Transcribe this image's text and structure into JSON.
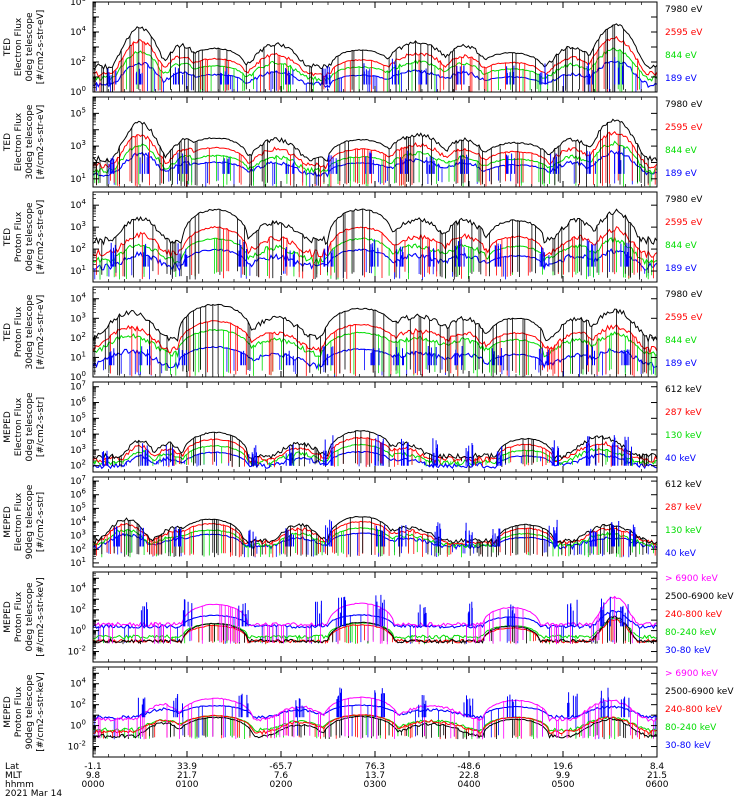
{
  "chart_data": [
    {
      "type": "line",
      "ylabel_lines": [
        "TED",
        "Electron Flux",
        "0deg telescope",
        "[#/cm2-s-str-eV]"
      ],
      "y_log_exponents": [
        0,
        2,
        4,
        6
      ],
      "ylim_exp": [
        0,
        6
      ],
      "x_hours": [
        0,
        6
      ],
      "series": [
        {
          "name": "7980 eV",
          "color": "#000000"
        },
        {
          "name": "2595 eV",
          "color": "#ff0000"
        },
        {
          "name": "844 eV",
          "color": "#00dd00"
        },
        {
          "name": "189 eV",
          "color": "#0000ff"
        }
      ],
      "overlays": [
        [
          0.2,
          1.1
        ],
        [
          0.5,
          1.3
        ],
        [
          0.9,
          1.2
        ],
        [
          1.4,
          1.0
        ],
        [
          2.1,
          1.0
        ],
        [
          2.5,
          1.2
        ],
        [
          2.9,
          1.4
        ],
        [
          3.2,
          1.6
        ],
        [
          3.5,
          1.0
        ],
        [
          3.9,
          1.4
        ],
        [
          4.45,
          1.3
        ],
        [
          4.8,
          1.3
        ],
        [
          5.3,
          1.4
        ],
        [
          5.6,
          1.8
        ]
      ],
      "arches": [
        [
          1.3,
          0.32,
          1.2
        ],
        [
          2.85,
          0.32,
          1.1
        ],
        [
          4.45,
          0.32,
          0.9
        ]
      ],
      "lobes": [
        [
          0.5,
          0.3,
          2.6
        ],
        [
          0.95,
          0.25,
          1.4
        ],
        [
          1.95,
          0.35,
          1.5
        ],
        [
          3.45,
          0.45,
          1.6
        ],
        [
          3.95,
          0.3,
          1.4
        ],
        [
          5.1,
          0.3,
          1.3
        ],
        [
          5.55,
          0.35,
          2.8
        ]
      ],
      "bg": [
        1.7,
        1.2,
        0.9,
        0.5
      ],
      "noise_lo": -0.2,
      "seed": 11
    },
    {
      "type": "line",
      "ylabel_lines": [
        "TED",
        "Electron Flux",
        "30deg telescope",
        "[#/cm2-s-str-eV]"
      ],
      "y_log_exponents": [
        1,
        3,
        5
      ],
      "ylim_exp": [
        0.5,
        6
      ],
      "x_hours": [
        0,
        6
      ],
      "series": [
        {
          "name": "7980 eV",
          "color": "#000000"
        },
        {
          "name": "2595 eV",
          "color": "#ff0000"
        },
        {
          "name": "844 eV",
          "color": "#00dd00"
        },
        {
          "name": "189 eV",
          "color": "#0000ff"
        }
      ],
      "overlays": [
        [
          0.2,
          1.0
        ],
        [
          0.55,
          1.2
        ],
        [
          0.95,
          1.2
        ],
        [
          1.4,
          1.0
        ],
        [
          2.1,
          1.0
        ],
        [
          2.55,
          1.2
        ],
        [
          2.95,
          1.3
        ],
        [
          3.3,
          1.4
        ],
        [
          3.6,
          1.0
        ],
        [
          3.95,
          1.2
        ],
        [
          4.45,
          1.2
        ],
        [
          4.9,
          1.2
        ],
        [
          5.3,
          1.3
        ],
        [
          5.6,
          1.6
        ]
      ],
      "arches": [
        [
          1.3,
          0.35,
          1.3
        ],
        [
          2.85,
          0.35,
          1.2
        ],
        [
          4.5,
          0.35,
          1.0
        ]
      ],
      "lobes": [
        [
          0.5,
          0.3,
          2.2
        ],
        [
          1.0,
          0.25,
          1.2
        ],
        [
          1.95,
          0.35,
          1.2
        ],
        [
          3.45,
          0.45,
          1.5
        ],
        [
          3.95,
          0.3,
          1.2
        ],
        [
          5.1,
          0.3,
          1.2
        ],
        [
          5.55,
          0.35,
          2.4
        ]
      ],
      "bg": [
        2.2,
        1.8,
        1.5,
        1.3
      ],
      "noise_lo": 0.5,
      "seed": 23
    },
    {
      "type": "line",
      "ylabel_lines": [
        "TED",
        "Proton Flux",
        "0deg telescope",
        "[#/cm2-s-str-eV]"
      ],
      "y_log_exponents": [
        1,
        2,
        3,
        4
      ],
      "ylim_exp": [
        0.5,
        4.6
      ],
      "x_hours": [
        0,
        6
      ],
      "series": [
        {
          "name": "7980 eV",
          "color": "#000000"
        },
        {
          "name": "2595 eV",
          "color": "#ff0000"
        },
        {
          "name": "844 eV",
          "color": "#00dd00"
        },
        {
          "name": "189 eV",
          "color": "#0000ff"
        }
      ],
      "overlays": [
        [
          0.2,
          1.0
        ],
        [
          0.55,
          1.0
        ],
        [
          0.95,
          1.0
        ],
        [
          1.6,
          1.2
        ],
        [
          2.1,
          1.0
        ],
        [
          2.5,
          1.0
        ],
        [
          3.0,
          1.2
        ],
        [
          3.25,
          1.0
        ],
        [
          3.6,
          1.0
        ],
        [
          3.9,
          1.2
        ],
        [
          4.3,
          1.0
        ],
        [
          4.8,
          1.0
        ],
        [
          5.3,
          1.2
        ],
        [
          5.65,
          1.0
        ]
      ],
      "arches": [
        [
          1.3,
          0.35,
          1.4
        ],
        [
          2.85,
          0.35,
          1.4
        ],
        [
          4.5,
          0.3,
          0.9
        ]
      ],
      "lobes": [
        [
          0.5,
          0.3,
          1.0
        ],
        [
          1.95,
          0.35,
          0.8
        ],
        [
          3.45,
          0.4,
          0.9
        ],
        [
          3.95,
          0.3,
          0.9
        ],
        [
          5.15,
          0.3,
          0.9
        ],
        [
          5.55,
          0.3,
          1.3
        ]
      ],
      "bg": [
        2.4,
        1.8,
        1.5,
        1.2
      ],
      "noise_lo": 0.6,
      "seed": 37
    },
    {
      "type": "line",
      "ylabel_lines": [
        "TED",
        "Proton Flux",
        "30deg telescope",
        "[#/cm2-s-str-eV]"
      ],
      "y_log_exponents": [
        0,
        1,
        2,
        3,
        4
      ],
      "ylim_exp": [
        0,
        4.6
      ],
      "x_hours": [
        0,
        6
      ],
      "series": [
        {
          "name": "7980 eV",
          "color": "#000000"
        },
        {
          "name": "2595 eV",
          "color": "#ff0000"
        },
        {
          "name": "844 eV",
          "color": "#00dd00"
        },
        {
          "name": "189 eV",
          "color": "#0000ff"
        }
      ],
      "overlays": [
        [
          0.2,
          0.8
        ],
        [
          0.55,
          0.9
        ],
        [
          0.95,
          0.8
        ],
        [
          1.6,
          0.9
        ],
        [
          2.1,
          0.8
        ],
        [
          2.5,
          0.9
        ],
        [
          3.0,
          1.0
        ],
        [
          3.25,
          0.9
        ],
        [
          3.6,
          0.9
        ],
        [
          3.9,
          1.0
        ],
        [
          4.3,
          0.9
        ],
        [
          4.8,
          0.9
        ],
        [
          5.3,
          1.0
        ],
        [
          5.65,
          0.9
        ]
      ],
      "arches": [
        [
          1.3,
          0.4,
          1.7
        ],
        [
          2.85,
          0.4,
          1.5
        ],
        [
          4.5,
          0.3,
          1.0
        ]
      ],
      "lobes": [
        [
          0.4,
          0.4,
          1.3
        ],
        [
          1.95,
          0.4,
          1.0
        ],
        [
          3.45,
          0.5,
          1.1
        ],
        [
          3.95,
          0.3,
          1.0
        ],
        [
          5.15,
          0.3,
          1.0
        ],
        [
          5.55,
          0.35,
          1.4
        ]
      ],
      "bg": [
        2.0,
        1.4,
        1.2,
        0.6
      ],
      "noise_lo": 0.0,
      "seed": 41
    },
    {
      "type": "line",
      "ylabel_lines": [
        "MEPED",
        "Electron Flux",
        "0deg telescope",
        "[#/cm2-s-str]"
      ],
      "y_log_exponents": [
        2,
        3,
        4,
        5,
        6,
        7
      ],
      "ylim_exp": [
        1.6,
        7.3
      ],
      "x_hours": [
        0,
        6
      ],
      "series": [
        {
          "name": "612 keV",
          "color": "#000000"
        },
        {
          "name": "287 keV",
          "color": "#ff0000"
        },
        {
          "name": "130 keV",
          "color": "#00dd00"
        },
        {
          "name": "40 keV",
          "color": "#0000ff"
        }
      ],
      "overlays": [
        [
          0.15,
          1.0
        ],
        [
          0.55,
          1.4
        ],
        [
          0.8,
          1.2
        ],
        [
          1.7,
          1.2
        ],
        [
          2.1,
          1.4
        ],
        [
          2.5,
          1.8
        ],
        [
          3.05,
          1.8
        ],
        [
          3.3,
          1.6
        ],
        [
          3.65,
          1.6
        ],
        [
          4.0,
          1.4
        ],
        [
          4.3,
          1.2
        ],
        [
          4.9,
          1.8
        ],
        [
          5.3,
          2.0
        ],
        [
          5.55,
          1.8
        ],
        [
          5.7,
          2.0
        ]
      ],
      "arches": [
        [
          1.3,
          0.35,
          1.5
        ],
        [
          2.85,
          0.35,
          1.6
        ],
        [
          4.6,
          0.3,
          1.1
        ]
      ],
      "lobes": [
        [
          0.5,
          0.2,
          1.0
        ],
        [
          0.8,
          0.2,
          0.8
        ],
        [
          2.2,
          0.3,
          0.8
        ],
        [
          3.3,
          0.3,
          0.8
        ],
        [
          5.4,
          0.4,
          1.2
        ]
      ],
      "bg": [
        2.6,
        2.4,
        2.2,
        2.0
      ],
      "noise_lo": 1.9,
      "seed": 53
    },
    {
      "type": "line",
      "ylabel_lines": [
        "MEPED",
        "Electron Flux",
        "90deg telescope",
        "[#/cm2-s-str]"
      ],
      "y_log_exponents": [
        1,
        2,
        3,
        4,
        5,
        6,
        7
      ],
      "ylim_exp": [
        0.7,
        7.3
      ],
      "x_hours": [
        0,
        6
      ],
      "series": [
        {
          "name": "612 keV",
          "color": "#000000"
        },
        {
          "name": "287 keV",
          "color": "#ff0000"
        },
        {
          "name": "130 keV",
          "color": "#00dd00"
        },
        {
          "name": "40 keV",
          "color": "#0000ff"
        }
      ],
      "overlays": [
        [
          0.25,
          1.4
        ],
        [
          0.55,
          1.6
        ],
        [
          0.9,
          1.4
        ],
        [
          1.7,
          1.2
        ],
        [
          2.1,
          1.4
        ],
        [
          2.5,
          1.8
        ],
        [
          3.05,
          1.8
        ],
        [
          3.3,
          1.6
        ],
        [
          3.65,
          1.8
        ],
        [
          4.0,
          1.6
        ],
        [
          4.3,
          1.4
        ],
        [
          4.9,
          1.8
        ],
        [
          5.3,
          1.8
        ],
        [
          5.55,
          1.8
        ],
        [
          5.75,
          1.8
        ]
      ],
      "arches": [
        [
          1.25,
          0.35,
          1.6
        ],
        [
          2.85,
          0.35,
          1.8
        ],
        [
          4.6,
          0.3,
          1.2
        ]
      ],
      "lobes": [
        [
          0.35,
          0.3,
          1.6
        ],
        [
          0.9,
          0.3,
          1.0
        ],
        [
          2.2,
          0.3,
          1.2
        ],
        [
          3.35,
          0.4,
          1.0
        ],
        [
          5.5,
          0.4,
          1.2
        ]
      ],
      "bg": [
        2.6,
        2.5,
        2.3,
        2.2
      ],
      "noise_lo": 1.4,
      "seed": 67
    },
    {
      "type": "line",
      "ylabel_lines": [
        "MEPED",
        "Proton Flux",
        "0deg telescope",
        "[#/cm2-s-str-keV]"
      ],
      "y_log_exponents": [
        -2,
        0,
        2,
        4
      ],
      "ylim_exp": [
        -3,
        5.6
      ],
      "x_hours": [
        0,
        6
      ],
      "series": [
        {
          "name": "> 6900 keV",
          "color": "#ff00ff"
        },
        {
          "name": "2500-6900 keV",
          "color": "#000000"
        },
        {
          "name": "240-800 keV",
          "color": "#ff0000"
        },
        {
          "name": "80-240 keV",
          "color": "#00dd00"
        },
        {
          "name": "30-80 keV",
          "color": "#0000ff"
        }
      ],
      "overlays": [
        [
          0.55,
          2.2
        ],
        [
          1.0,
          2.4
        ],
        [
          1.6,
          2.2
        ],
        [
          2.4,
          2.4
        ],
        [
          2.65,
          2.6
        ],
        [
          3.05,
          2.8
        ],
        [
          3.5,
          2.0
        ],
        [
          4.0,
          2.2
        ],
        [
          4.45,
          2.0
        ],
        [
          5.1,
          2.4
        ],
        [
          5.45,
          2.6
        ],
        [
          5.65,
          2.6
        ]
      ],
      "arches": [
        [
          1.3,
          0.35,
          1.9
        ],
        [
          2.85,
          0.35,
          2.0
        ],
        [
          4.45,
          0.3,
          1.6
        ]
      ],
      "lobes": [
        [
          5.55,
          0.25,
          2.6
        ]
      ],
      "bg": [
        0.6,
        -1.0,
        -1.0,
        -0.6,
        0.4
      ],
      "noise_lo": -1.3,
      "seed": 79
    },
    {
      "type": "line",
      "ylabel_lines": [
        "MEPED",
        "Proton Flux",
        "90deg telescope",
        "[#/cm2-s-str-keV]"
      ],
      "y_log_exponents": [
        -2,
        0,
        2,
        4
      ],
      "ylim_exp": [
        -3,
        5.6
      ],
      "x_hours": [
        0,
        6
      ],
      "series": [
        {
          "name": "> 6900 keV",
          "color": "#ff00ff"
        },
        {
          "name": "2500-6900 keV",
          "color": "#000000"
        },
        {
          "name": "240-800 keV",
          "color": "#ff0000"
        },
        {
          "name": "80-240 keV",
          "color": "#00dd00"
        },
        {
          "name": "30-80 keV",
          "color": "#0000ff"
        }
      ],
      "overlays": [
        [
          0.5,
          2.0
        ],
        [
          0.9,
          2.2
        ],
        [
          1.6,
          2.2
        ],
        [
          2.2,
          2.0
        ],
        [
          2.6,
          2.6
        ],
        [
          3.05,
          2.6
        ],
        [
          3.5,
          2.0
        ],
        [
          4.0,
          2.2
        ],
        [
          4.45,
          2.0
        ],
        [
          5.1,
          2.4
        ],
        [
          5.45,
          2.6
        ],
        [
          5.65,
          2.4
        ]
      ],
      "arches": [
        [
          1.3,
          0.4,
          2.0
        ],
        [
          2.85,
          0.4,
          2.1
        ],
        [
          4.5,
          0.35,
          1.8
        ]
      ],
      "lobes": [
        [
          0.75,
          0.3,
          1.4
        ],
        [
          2.2,
          0.35,
          1.2
        ],
        [
          3.6,
          0.5,
          1.3
        ],
        [
          5.5,
          0.4,
          1.8
        ]
      ],
      "bg": [
        0.6,
        -1.0,
        -0.6,
        -0.4,
        0.8
      ],
      "noise_lo": -1.3,
      "seed": 97
    }
  ],
  "x_axis": {
    "rows": [
      {
        "label": "Lat",
        "values": [
          "-1.1",
          "33.9",
          "-65.7",
          "76.3",
          "-48.6",
          "19.6",
          "8.4"
        ]
      },
      {
        "label": "MLT",
        "values": [
          "9.8",
          "21.7",
          "7.6",
          "13.7",
          "22.8",
          "9.9",
          "21.5"
        ]
      },
      {
        "label": "hhmm",
        "values": [
          "0000",
          "0100",
          "0200",
          "0300",
          "0400",
          "0500",
          "0600"
        ]
      }
    ],
    "date": "2021 Mar 14"
  }
}
